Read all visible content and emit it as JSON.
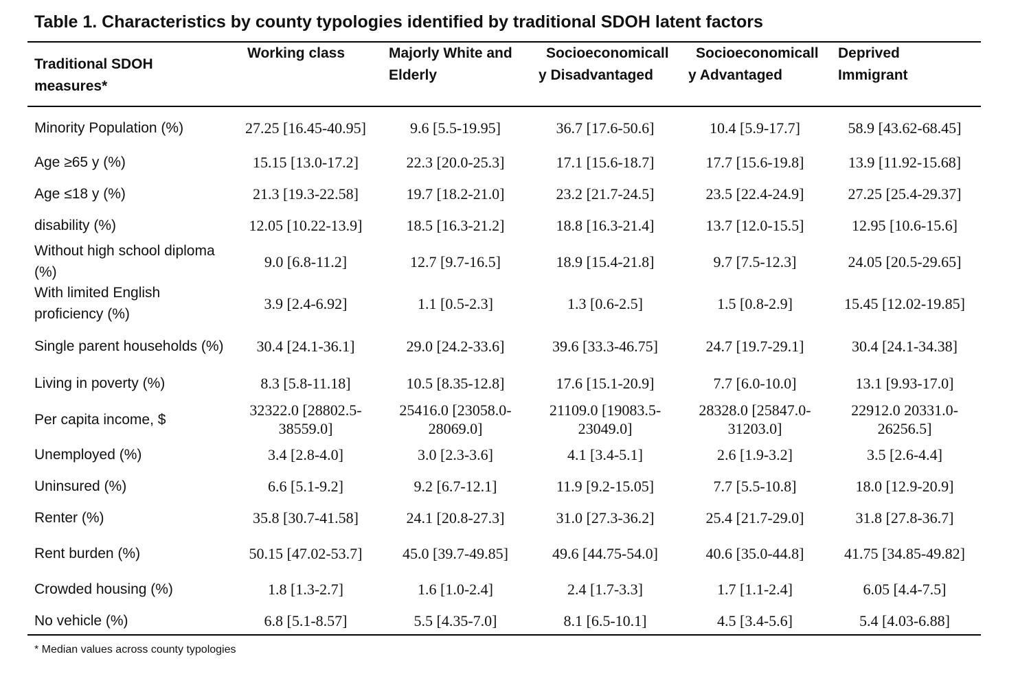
{
  "title": "Table 1. Characteristics by county typologies identified by traditional SDOH latent factors",
  "columns": [
    "Traditional SDOH measures*",
    "Working class",
    "Majorly White and Elderly",
    "Socioeconomically Disadvantaged",
    "Socioeconomically Advantaged",
    "Deprived Immigrant"
  ],
  "rows": [
    {
      "label": "Minority Population (%)",
      "values": [
        "27.25 [16.45-40.95]",
        "9.6 [5.5-19.95]",
        "36.7 [17.6-50.6]",
        "10.4 [5.9-17.7]",
        "58.9 [43.62-68.45]"
      ]
    },
    {
      "label": "Age ≥65 y (%)",
      "values": [
        "15.15 [13.0-17.2]",
        "22.3 [20.0-25.3]",
        "17.1 [15.6-18.7]",
        "17.7 [15.6-19.8]",
        "13.9 [11.92-15.68]"
      ]
    },
    {
      "label": "Age ≤18 y (%)",
      "values": [
        "21.3 [19.3-22.58]",
        "19.7 [18.2-21.0]",
        "23.2 [21.7-24.5]",
        "23.5 [22.4-24.9]",
        "27.25 [25.4-29.37]"
      ]
    },
    {
      "label": "disability (%)",
      "values": [
        "12.05 [10.22-13.9]",
        "18.5 [16.3-21.2]",
        "18.8 [16.3-21.4]",
        "13.7 [12.0-15.5]",
        "12.95 [10.6-15.6]"
      ]
    },
    {
      "label": "Without high school diploma (%)",
      "values": [
        "9.0 [6.8-11.2]",
        "12.7 [9.7-16.5]",
        "18.9 [15.4-21.8]",
        "9.7 [7.5-12.3]",
        "24.05 [20.5-29.65]"
      ]
    },
    {
      "label": "With limited English proficiency (%)",
      "values": [
        "3.9 [2.4-6.92]",
        "1.1 [0.5-2.3]",
        "1.3 [0.6-2.5]",
        "1.5 [0.8-2.9]",
        "15.45 [12.02-19.85]"
      ]
    },
    {
      "label": "Single parent households (%)",
      "values": [
        "30.4 [24.1-36.1]",
        "29.0 [24.2-33.6]",
        "39.6 [33.3-46.75]",
        "24.7 [19.7-29.1]",
        "30.4 [24.1-34.38]"
      ]
    },
    {
      "label": "Living in poverty (%)",
      "values": [
        "8.3 [5.8-11.18]",
        "10.5 [8.35-12.8]",
        "17.6 [15.1-20.9]",
        "7.7 [6.0-10.0]",
        "13.1 [9.93-17.0]"
      ]
    },
    {
      "label": "Per capita income, $",
      "values": [
        "32322.0 [28802.5-38559.0]",
        "25416.0 [23058.0-28069.0]",
        "21109.0 [19083.5-23049.0]",
        "28328.0 [25847.0-31203.0]",
        "22912.0 20331.0-26256.5]"
      ]
    },
    {
      "label": "Unemployed (%)",
      "values": [
        "3.4 [2.8-4.0]",
        "3.0 [2.3-3.6]",
        "4.1 [3.4-5.1]",
        "2.6 [1.9-3.2]",
        "3.5 [2.6-4.4]"
      ]
    },
    {
      "label": "Uninsured (%)",
      "values": [
        "6.6 [5.1-9.2]",
        "9.2 [6.7-12.1]",
        "11.9 [9.2-15.05]",
        "7.7 [5.5-10.8]",
        "18.0 [12.9-20.9]"
      ]
    },
    {
      "label": "Renter (%)",
      "values": [
        "35.8 [30.7-41.58]",
        "24.1 [20.8-27.3]",
        "31.0 [27.3-36.2]",
        "25.4 [21.7-29.0]",
        "31.8 [27.8-36.7]"
      ]
    },
    {
      "label": "Rent burden (%)",
      "values": [
        "50.15 [47.02-53.7]",
        "45.0 [39.7-49.85]",
        "49.6 [44.75-54.0]",
        "40.6 [35.0-44.8]",
        "41.75 [34.85-49.82]"
      ]
    },
    {
      "label": "Crowded housing (%)",
      "values": [
        "1.8 [1.3-2.7]",
        "1.6 [1.0-2.4]",
        "2.4 [1.7-3.3]",
        "1.7 [1.1-2.4]",
        "6.05 [4.4-7.5]"
      ]
    },
    {
      "label": "No vehicle (%)",
      "values": [
        "6.8 [5.1-8.57]",
        "5.5 [4.35-7.0]",
        "8.1 [6.5-10.1]",
        "4.5 [3.4-5.6]",
        "5.4 [4.03-6.88]"
      ]
    }
  ],
  "footnote": "* Median values across county typologies"
}
